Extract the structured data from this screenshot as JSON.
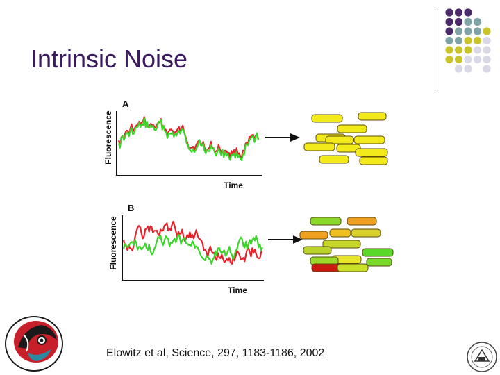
{
  "slide": {
    "title": "Intrinsic Noise",
    "citation": "Elowitz et al, Science, 297, 1183-1186, 2002"
  },
  "panels": [
    {
      "label": "A",
      "y_axis_label": "Fluorescence",
      "x_axis_label": "Time"
    },
    {
      "label": "B",
      "y_axis_label": "Fluorescence",
      "x_axis_label": "Time"
    }
  ],
  "colors": {
    "title": "#3a1a5e",
    "dot_purple": "#4a2a6a",
    "dot_teal": "#7fa3a6",
    "dot_olive": "#c8c42a",
    "dot_light": "#d8d8e6",
    "trace_red": "#e8202a",
    "trace_green": "#3ad62a",
    "cell_yellow": "#f2ea1a",
    "cell_green": "#5ad82a",
    "cell_orange": "#f0a020",
    "cell_red": "#c81a10"
  },
  "icons": {
    "arrow": "right-arrow-icon",
    "logo_left": "northwest-life-science-center-logo",
    "logo_right": "national-institutes-of-health-seal"
  }
}
